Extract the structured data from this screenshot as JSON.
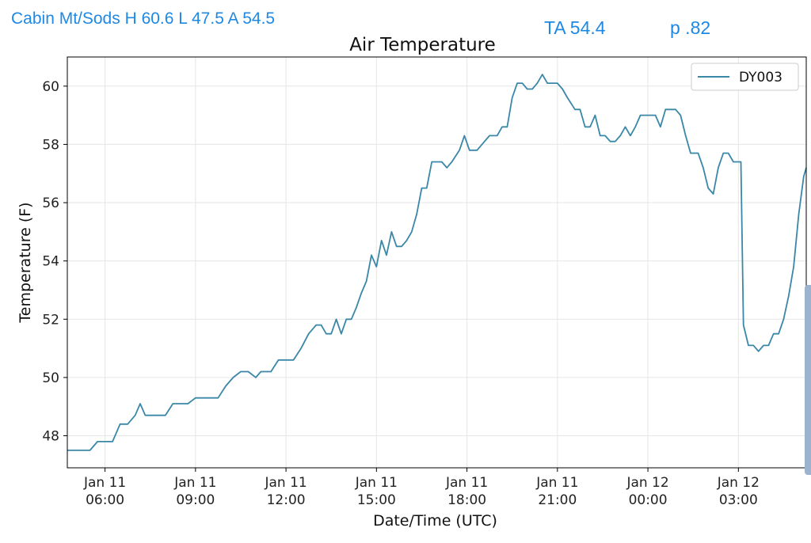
{
  "header": {
    "station_summary": "Cabin Mt/Sods H 60.6 L 47.5 A 54.5",
    "ta": "TA 54.4",
    "p": "p .82"
  },
  "colors": {
    "series": "#3a87a8",
    "header_text": "#1e88e5",
    "grid": "#e6e6e6"
  },
  "chart_data": {
    "type": "line",
    "title": "Air Temperature",
    "xlabel": "Date/Time (UTC)",
    "ylabel": "Temperature (F)",
    "ylim": [
      46.9,
      61.0
    ],
    "xlim": [
      "2019-01-11 04:45",
      "2019-01-12 05:15"
    ],
    "grid": true,
    "legend_position": "top-right",
    "y_ticks": [
      48,
      50,
      52,
      54,
      56,
      58,
      60
    ],
    "x_ticks": [
      {
        "t": "2019-01-11 06:00",
        "date": "Jan 11",
        "time": "06:00"
      },
      {
        "t": "2019-01-11 09:00",
        "date": "Jan 11",
        "time": "09:00"
      },
      {
        "t": "2019-01-11 12:00",
        "date": "Jan 11",
        "time": "12:00"
      },
      {
        "t": "2019-01-11 15:00",
        "date": "Jan 11",
        "time": "15:00"
      },
      {
        "t": "2019-01-11 18:00",
        "date": "Jan 11",
        "time": "18:00"
      },
      {
        "t": "2019-01-11 21:00",
        "date": "Jan 11",
        "time": "21:00"
      },
      {
        "t": "2019-01-12 00:00",
        "date": "Jan 12",
        "time": "00:00"
      },
      {
        "t": "2019-01-12 03:00",
        "date": "Jan 12",
        "time": "03:00"
      }
    ],
    "series": [
      {
        "name": "DY003",
        "points": [
          [
            "2019-01-11 04:45",
            47.5
          ],
          [
            "2019-01-11 05:30",
            47.5
          ],
          [
            "2019-01-11 05:45",
            47.8
          ],
          [
            "2019-01-11 06:15",
            47.8
          ],
          [
            "2019-01-11 06:30",
            48.4
          ],
          [
            "2019-01-11 06:45",
            48.4
          ],
          [
            "2019-01-11 07:00",
            48.7
          ],
          [
            "2019-01-11 07:10",
            49.1
          ],
          [
            "2019-01-11 07:20",
            48.7
          ],
          [
            "2019-01-11 08:00",
            48.7
          ],
          [
            "2019-01-11 08:15",
            49.1
          ],
          [
            "2019-01-11 08:45",
            49.1
          ],
          [
            "2019-01-11 09:00",
            49.3
          ],
          [
            "2019-01-11 09:45",
            49.3
          ],
          [
            "2019-01-11 10:00",
            49.7
          ],
          [
            "2019-01-11 10:15",
            50.0
          ],
          [
            "2019-01-11 10:30",
            50.2
          ],
          [
            "2019-01-11 10:45",
            50.2
          ],
          [
            "2019-01-11 11:00",
            50.0
          ],
          [
            "2019-01-11 11:10",
            50.2
          ],
          [
            "2019-01-11 11:30",
            50.2
          ],
          [
            "2019-01-11 11:45",
            50.6
          ],
          [
            "2019-01-11 12:15",
            50.6
          ],
          [
            "2019-01-11 12:30",
            51.0
          ],
          [
            "2019-01-11 12:45",
            51.5
          ],
          [
            "2019-01-11 13:00",
            51.8
          ],
          [
            "2019-01-11 13:10",
            51.8
          ],
          [
            "2019-01-11 13:20",
            51.5
          ],
          [
            "2019-01-11 13:30",
            51.5
          ],
          [
            "2019-01-11 13:40",
            52.0
          ],
          [
            "2019-01-11 13:50",
            51.5
          ],
          [
            "2019-01-11 14:00",
            52.0
          ],
          [
            "2019-01-11 14:10",
            52.0
          ],
          [
            "2019-01-11 14:20",
            52.4
          ],
          [
            "2019-01-11 14:30",
            52.9
          ],
          [
            "2019-01-11 14:40",
            53.3
          ],
          [
            "2019-01-11 14:50",
            54.2
          ],
          [
            "2019-01-11 15:00",
            53.8
          ],
          [
            "2019-01-11 15:10",
            54.7
          ],
          [
            "2019-01-11 15:20",
            54.2
          ],
          [
            "2019-01-11 15:30",
            55.0
          ],
          [
            "2019-01-11 15:40",
            54.5
          ],
          [
            "2019-01-11 15:50",
            54.5
          ],
          [
            "2019-01-11 16:00",
            54.7
          ],
          [
            "2019-01-11 16:10",
            55.0
          ],
          [
            "2019-01-11 16:20",
            55.6
          ],
          [
            "2019-01-11 16:30",
            56.5
          ],
          [
            "2019-01-11 16:40",
            56.5
          ],
          [
            "2019-01-11 16:50",
            57.4
          ],
          [
            "2019-01-11 17:10",
            57.4
          ],
          [
            "2019-01-11 17:20",
            57.2
          ],
          [
            "2019-01-11 17:30",
            57.4
          ],
          [
            "2019-01-11 17:45",
            57.8
          ],
          [
            "2019-01-11 17:55",
            58.3
          ],
          [
            "2019-01-11 18:05",
            57.8
          ],
          [
            "2019-01-11 18:20",
            57.8
          ],
          [
            "2019-01-11 18:35",
            58.1
          ],
          [
            "2019-01-11 18:45",
            58.3
          ],
          [
            "2019-01-11 19:00",
            58.3
          ],
          [
            "2019-01-11 19:10",
            58.6
          ],
          [
            "2019-01-11 19:20",
            58.6
          ],
          [
            "2019-01-11 19:30",
            59.6
          ],
          [
            "2019-01-11 19:40",
            60.1
          ],
          [
            "2019-01-11 19:50",
            60.1
          ],
          [
            "2019-01-11 20:00",
            59.9
          ],
          [
            "2019-01-11 20:10",
            59.9
          ],
          [
            "2019-01-11 20:20",
            60.1
          ],
          [
            "2019-01-11 20:30",
            60.4
          ],
          [
            "2019-01-11 20:40",
            60.1
          ],
          [
            "2019-01-11 21:00",
            60.1
          ],
          [
            "2019-01-11 21:10",
            59.9
          ],
          [
            "2019-01-11 21:20",
            59.6
          ],
          [
            "2019-01-11 21:35",
            59.2
          ],
          [
            "2019-01-11 21:45",
            59.2
          ],
          [
            "2019-01-11 21:55",
            58.6
          ],
          [
            "2019-01-11 22:05",
            58.6
          ],
          [
            "2019-01-11 22:15",
            59.0
          ],
          [
            "2019-01-11 22:25",
            58.3
          ],
          [
            "2019-01-11 22:35",
            58.3
          ],
          [
            "2019-01-11 22:45",
            58.1
          ],
          [
            "2019-01-11 22:55",
            58.1
          ],
          [
            "2019-01-11 23:05",
            58.3
          ],
          [
            "2019-01-11 23:15",
            58.6
          ],
          [
            "2019-01-11 23:25",
            58.3
          ],
          [
            "2019-01-11 23:35",
            58.6
          ],
          [
            "2019-01-11 23:45",
            59.0
          ],
          [
            "2019-01-12 00:15",
            59.0
          ],
          [
            "2019-01-12 00:25",
            58.6
          ],
          [
            "2019-01-12 00:35",
            59.2
          ],
          [
            "2019-01-12 00:55",
            59.2
          ],
          [
            "2019-01-12 01:05",
            59.0
          ],
          [
            "2019-01-12 01:15",
            58.3
          ],
          [
            "2019-01-12 01:25",
            57.7
          ],
          [
            "2019-01-12 01:40",
            57.7
          ],
          [
            "2019-01-12 01:50",
            57.2
          ],
          [
            "2019-01-12 02:00",
            56.5
          ],
          [
            "2019-01-12 02:10",
            56.3
          ],
          [
            "2019-01-12 02:20",
            57.2
          ],
          [
            "2019-01-12 02:30",
            57.7
          ],
          [
            "2019-01-12 02:40",
            57.7
          ],
          [
            "2019-01-12 02:50",
            57.4
          ],
          [
            "2019-01-12 03:00",
            57.4
          ],
          [
            "2019-01-12 03:05",
            57.4
          ],
          [
            "2019-01-12 03:10",
            51.8
          ],
          [
            "2019-01-12 03:20",
            51.1
          ],
          [
            "2019-01-12 03:30",
            51.1
          ],
          [
            "2019-01-12 03:40",
            50.9
          ],
          [
            "2019-01-12 03:50",
            51.1
          ],
          [
            "2019-01-12 04:00",
            51.1
          ],
          [
            "2019-01-12 04:10",
            51.5
          ],
          [
            "2019-01-12 04:20",
            51.5
          ],
          [
            "2019-01-12 04:30",
            52.0
          ],
          [
            "2019-01-12 04:40",
            52.8
          ],
          [
            "2019-01-12 04:50",
            53.8
          ],
          [
            "2019-01-12 05:00",
            55.6
          ],
          [
            "2019-01-12 05:10",
            56.9
          ],
          [
            "2019-01-12 05:15",
            57.2
          ]
        ]
      }
    ]
  }
}
